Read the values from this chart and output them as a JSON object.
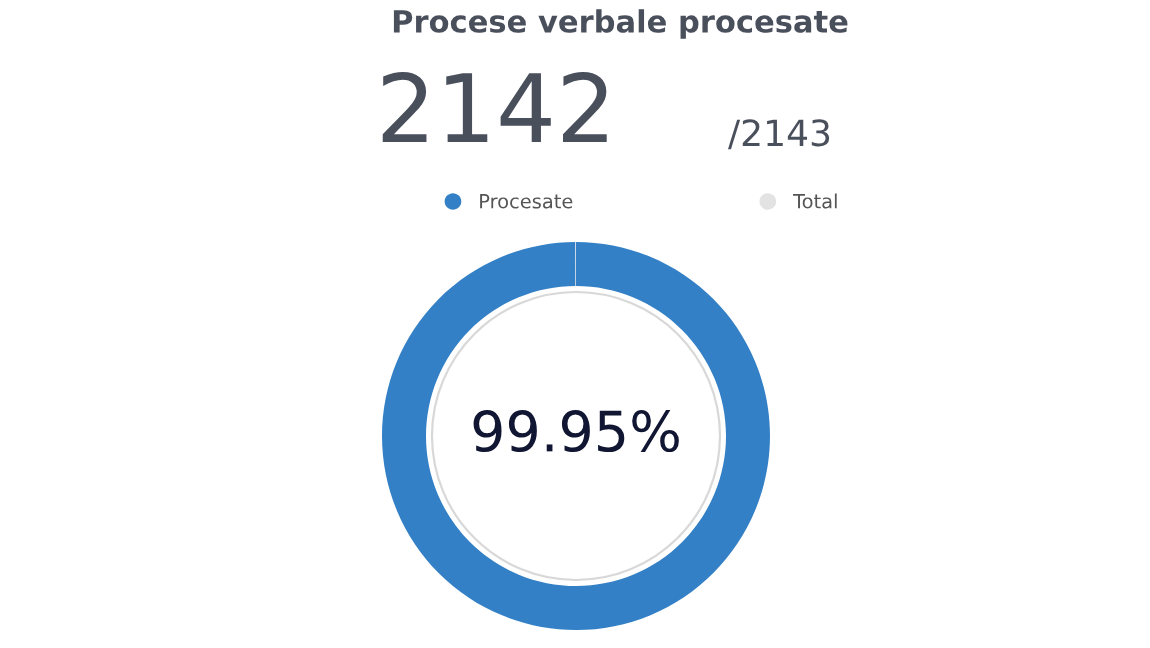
{
  "chart_data": {
    "type": "donut",
    "title": "Procese verbale procesate",
    "categories": [
      "Procesate",
      "Total"
    ],
    "values": [
      99.95,
      0.05
    ],
    "colors": [
      "#3480c6",
      "#e3e3e3"
    ],
    "legend": "top",
    "annotations": [
      "2142",
      "/2143",
      "99.95%"
    ]
  }
}
